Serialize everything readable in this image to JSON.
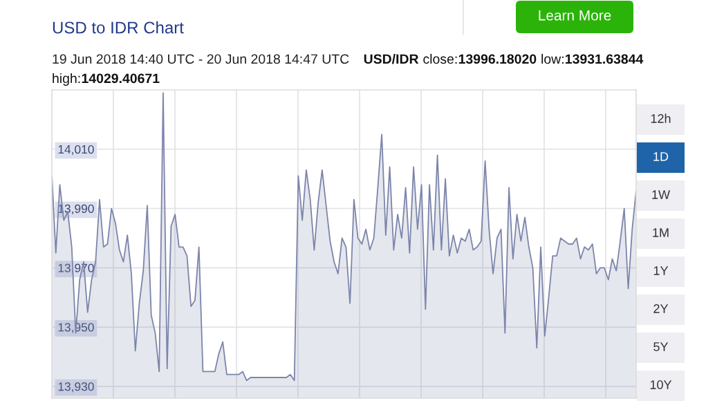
{
  "chart_data": {
    "type": "area",
    "title": "USD to IDR Chart",
    "subtitle": "19 Jun 2018 14:40 UTC - 20 Jun 2018 14:47 UTC",
    "annotations": [
      "USD/IDR close:13996.18020 low:13931.63844",
      "high:14029.40671",
      "Learn More",
      "12h",
      "1D",
      "1W",
      "1M",
      "1Y",
      "2Y",
      "5Y",
      "10Y"
    ],
    "categories": [
      null,
      null,
      null,
      null,
      null,
      null,
      null,
      null,
      null,
      null,
      null,
      null,
      null,
      null,
      null,
      null,
      null,
      null,
      null,
      null,
      null,
      null,
      null,
      null,
      null,
      null,
      null,
      null,
      null,
      null,
      null,
      null,
      null,
      null,
      null,
      null,
      null,
      null,
      null,
      null,
      null,
      null,
      null,
      null,
      null,
      null,
      null,
      null,
      null,
      null,
      null,
      null,
      null,
      null,
      null,
      null,
      null,
      null,
      null,
      null,
      null,
      null,
      null,
      null,
      null,
      null,
      null,
      null,
      null,
      null,
      null,
      null,
      null,
      null,
      null,
      null,
      null,
      null,
      null,
      null,
      null,
      null,
      null,
      null,
      null,
      null,
      null,
      null,
      null,
      null,
      null,
      null,
      null,
      null,
      null,
      null,
      null,
      null,
      null,
      null,
      null,
      null,
      null,
      null,
      null,
      null,
      null,
      null,
      null,
      null,
      null,
      null,
      null,
      null,
      null,
      null,
      null,
      null,
      null,
      null,
      null,
      null,
      null,
      null,
      null,
      null,
      null,
      null,
      null,
      null,
      null,
      null,
      null,
      null,
      null,
      null,
      null,
      null,
      null,
      null,
      null,
      null,
      null,
      null,
      null,
      null,
      null,
      null
    ],
    "series": [
      {
        "color": "#7c85ab",
        "values": [
          14001,
          13975,
          13998,
          13986,
          13989,
          13977,
          13948,
          13966,
          13972,
          13955,
          13966,
          13972,
          13993,
          13977,
          13978,
          13990,
          13985,
          13976,
          13972,
          13981,
          13968,
          13942,
          13958,
          13969,
          13991,
          13954,
          13948,
          13935,
          14029,
          13936,
          13984,
          13988,
          13977,
          13977,
          13974,
          13957,
          13959,
          13977,
          13935,
          13935,
          13935,
          13935,
          13941,
          13945,
          13934,
          13934,
          13934,
          13934,
          13935,
          13932,
          13933,
          13933,
          13933,
          13933,
          13933,
          13933,
          13933,
          13933,
          13933,
          13933,
          13934,
          13932,
          14001,
          13986,
          14003,
          13993,
          13976,
          13992,
          14003,
          13991,
          13979,
          13972,
          13968,
          13980,
          13977,
          13958,
          13993,
          13980,
          13978,
          13983,
          13976,
          13980,
          13997,
          14015,
          13981,
          14004,
          13976,
          13988,
          13980,
          13997,
          13975,
          14004,
          13983,
          13998,
          13956,
          13998,
          13976,
          14008,
          13976,
          14000,
          13974,
          13981,
          13975,
          13980,
          13979,
          13983,
          13976,
          13977,
          13979,
          14006,
          13983,
          13968,
          13980,
          13983,
          13948,
          13997,
          13973,
          13988,
          13979,
          13987,
          13977,
          13970,
          13943,
          13977,
          13947,
          13960,
          13974,
          13974,
          13980,
          13979,
          13978,
          13978,
          13980,
          13973,
          13977,
          13976,
          13978,
          13968,
          13970,
          13970,
          13966,
          13973,
          13969,
          13979,
          13990,
          13963,
          13983,
          13996
        ]
      }
    ],
    "ylim": [
      13926,
      14030
    ],
    "yticks": [
      {
        "value": 13930,
        "label": "13,930"
      },
      {
        "value": 13950,
        "label": "13,950"
      },
      {
        "value": 13970,
        "label": "13,970"
      },
      {
        "value": 13990,
        "label": "13,990"
      },
      {
        "value": 14010,
        "label": "14,010"
      }
    ],
    "grid": true,
    "tick_labels": "y"
  }
}
